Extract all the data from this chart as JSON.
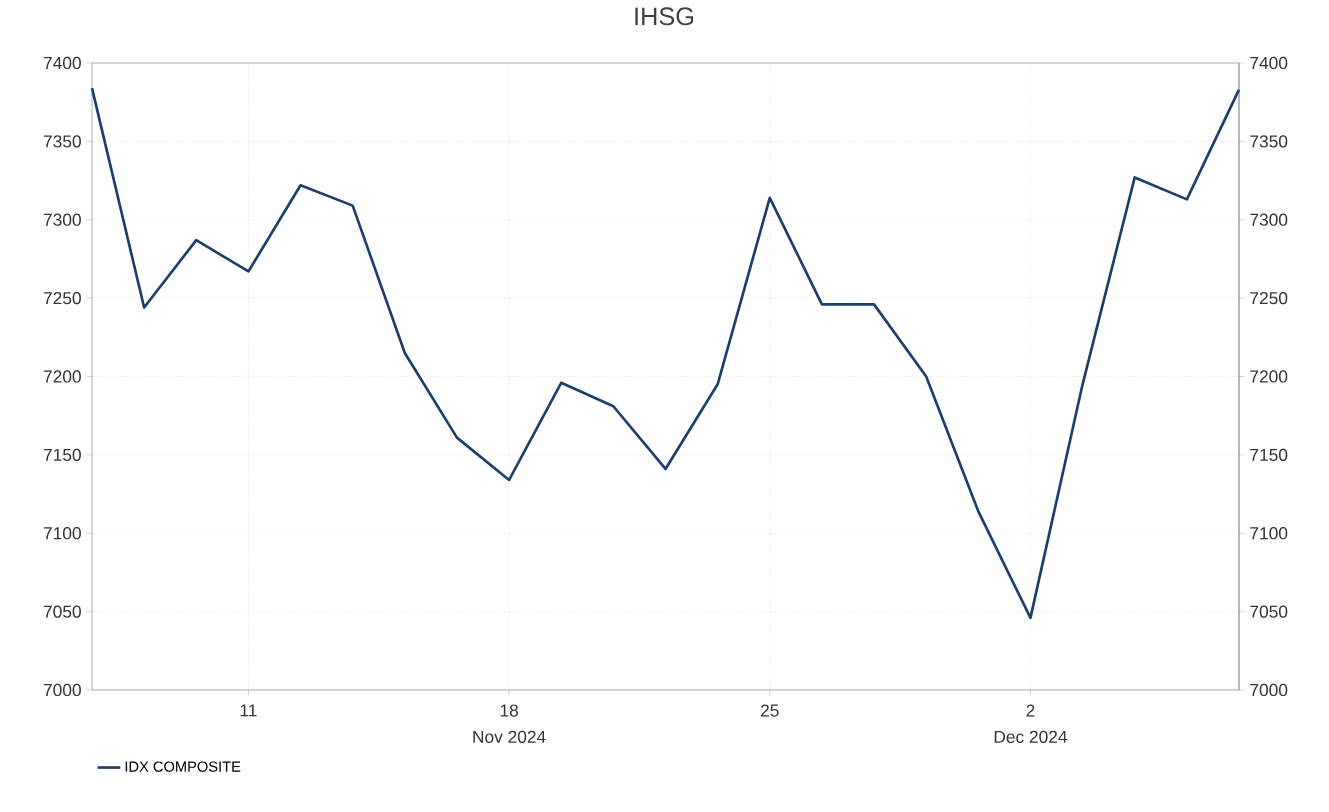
{
  "chart_data": {
    "type": "line",
    "title": "IHSG",
    "categories": [
      null,
      null,
      null,
      "11",
      null,
      null,
      null,
      null,
      "18",
      null,
      null,
      null,
      null,
      "25",
      null,
      null,
      null,
      null,
      "2",
      null,
      null,
      null,
      null
    ],
    "series": [
      {
        "name": "IDX COMPOSITE",
        "color": "#1f3d6b",
        "values": [
          7384,
          7244,
          7287,
          7267,
          7322,
          7309,
          7215,
          7161,
          7134,
          7196,
          7181,
          7141,
          7195,
          7314,
          7246,
          7246,
          7200,
          7114,
          7046,
          7195,
          7327,
          7313,
          7383
        ]
      }
    ],
    "ylim": [
      7000,
      7400
    ],
    "yticks": [
      7000,
      7050,
      7100,
      7150,
      7200,
      7250,
      7300,
      7350,
      7400
    ],
    "y2lim": [
      7000,
      7400
    ],
    "y2ticks": [
      7000,
      7050,
      7100,
      7150,
      7200,
      7250,
      7300,
      7350,
      7400
    ],
    "annotations": [
      "Nov 2024",
      "Dec 2024"
    ],
    "grid": true,
    "legend": "bottom left",
    "line_style": "solid",
    "marker": "none"
  }
}
